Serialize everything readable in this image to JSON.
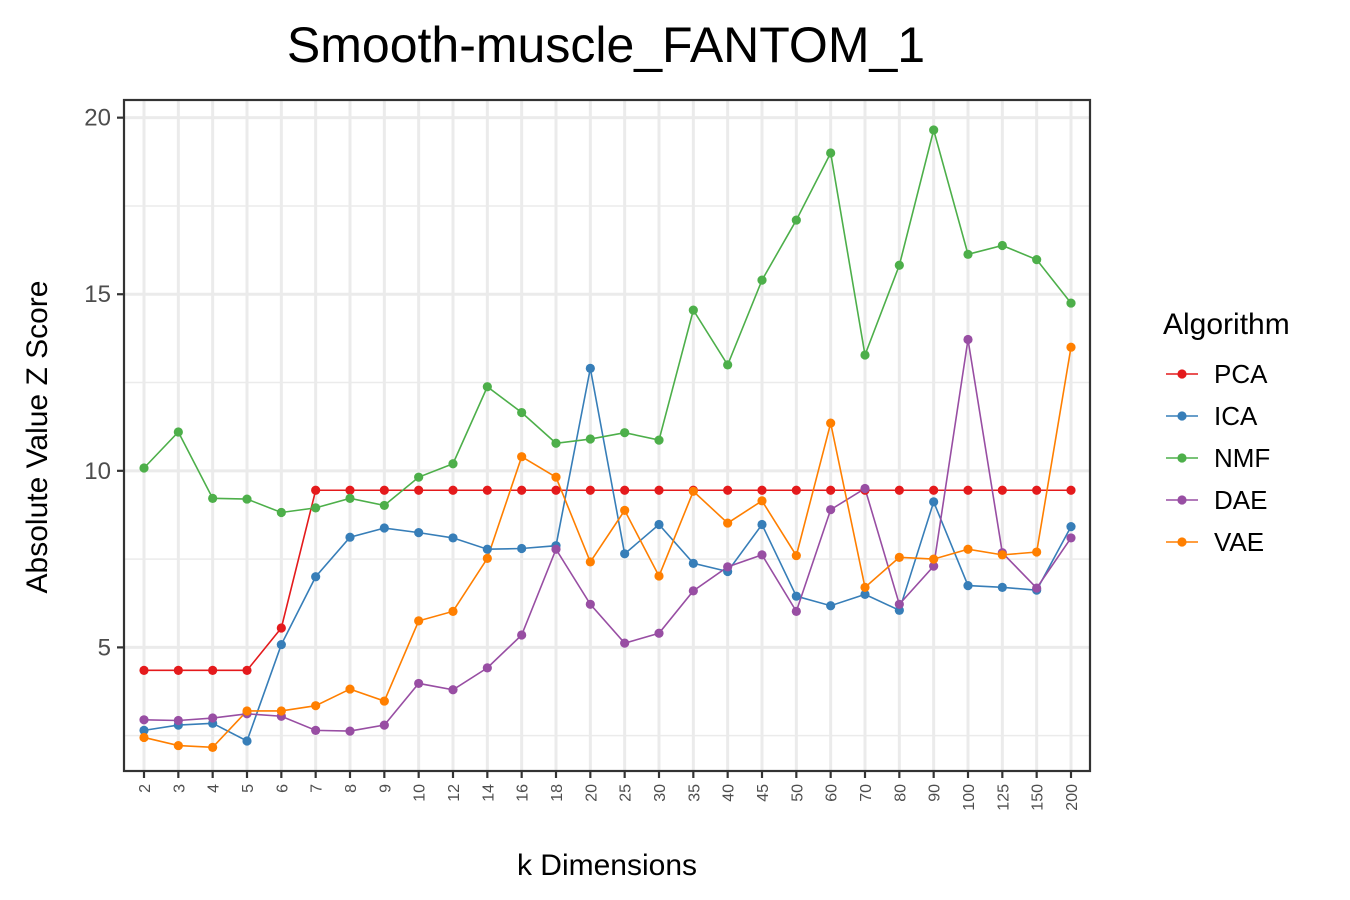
{
  "chart_data": {
    "type": "line",
    "title": "Smooth-muscle_FANTOM_1",
    "xlabel": "k Dimensions",
    "ylabel": "Absolute Value Z Score",
    "categories": [
      "2",
      "3",
      "4",
      "5",
      "6",
      "7",
      "8",
      "9",
      "10",
      "12",
      "14",
      "16",
      "18",
      "20",
      "25",
      "30",
      "35",
      "40",
      "45",
      "50",
      "60",
      "70",
      "80",
      "90",
      "100",
      "125",
      "150",
      "200"
    ],
    "ylim": [
      1.5,
      20.5
    ],
    "yticks": [
      5,
      10,
      15,
      20
    ],
    "grid": true,
    "legend_title": "Algorithm",
    "legend_position": "right",
    "series": [
      {
        "name": "PCA",
        "color": "#e41a1c",
        "values": [
          4.35,
          4.35,
          4.35,
          4.35,
          5.55,
          9.45,
          9.45,
          9.45,
          9.45,
          9.45,
          9.45,
          9.45,
          9.45,
          9.45,
          9.45,
          9.45,
          9.45,
          9.45,
          9.45,
          9.45,
          9.45,
          9.45,
          9.45,
          9.45,
          9.45,
          9.45,
          9.45,
          9.45
        ]
      },
      {
        "name": "ICA",
        "color": "#377eb8",
        "values": [
          2.65,
          2.8,
          2.85,
          2.35,
          5.08,
          7.0,
          8.12,
          8.38,
          8.25,
          8.1,
          7.78,
          7.8,
          7.88,
          12.9,
          7.65,
          8.48,
          7.38,
          7.15,
          8.48,
          6.45,
          6.18,
          6.5,
          6.05,
          9.12,
          6.75,
          6.7,
          6.62,
          8.42
        ]
      },
      {
        "name": "NMF",
        "color": "#4daf4a",
        "values": [
          10.08,
          11.1,
          9.22,
          9.2,
          8.82,
          8.95,
          9.22,
          9.02,
          9.82,
          10.2,
          12.38,
          11.65,
          10.78,
          10.9,
          11.08,
          10.87,
          14.55,
          13.0,
          15.4,
          17.1,
          19.0,
          13.28,
          15.82,
          19.65,
          16.13,
          16.38,
          15.98,
          14.75
        ]
      },
      {
        "name": "DAE",
        "color": "#984ea3",
        "values": [
          2.95,
          2.93,
          3.0,
          3.12,
          3.05,
          2.65,
          2.63,
          2.8,
          3.98,
          3.8,
          4.42,
          5.35,
          7.78,
          6.22,
          5.12,
          5.4,
          6.6,
          7.28,
          7.62,
          6.02,
          8.9,
          9.5,
          6.22,
          7.3,
          13.72,
          7.68,
          6.68,
          8.1
        ]
      },
      {
        "name": "VAE",
        "color": "#ff7f00",
        "values": [
          2.45,
          2.22,
          2.17,
          3.2,
          3.2,
          3.35,
          3.82,
          3.48,
          5.75,
          6.02,
          7.52,
          10.4,
          9.82,
          7.42,
          8.88,
          7.02,
          9.42,
          8.52,
          9.15,
          7.6,
          11.35,
          6.7,
          7.55,
          7.5,
          7.78,
          7.62,
          7.7,
          13.5
        ]
      }
    ]
  }
}
